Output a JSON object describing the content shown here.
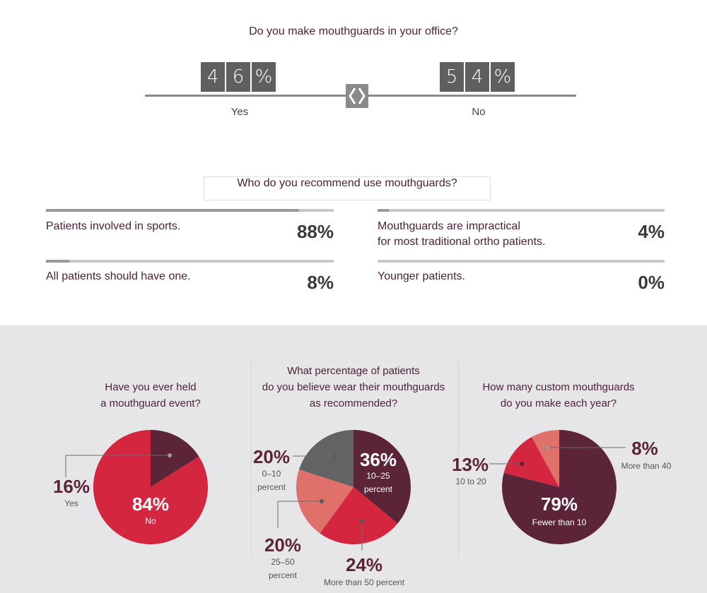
{
  "q1": {
    "question": "Do you make mouthguards in your office?",
    "yes": {
      "digits": [
        "4",
        "6",
        "%"
      ],
      "label": "Yes",
      "value": 46
    },
    "no": {
      "digits": [
        "5",
        "4",
        "%"
      ],
      "label": "No",
      "value": 54
    }
  },
  "q2": {
    "question": "Who do you recommend use mouthguards?",
    "items": [
      {
        "label": "Patients involved in sports.",
        "label2": "",
        "pct": "88%",
        "value": 88
      },
      {
        "label": "Mouthguards are impractical",
        "label2": "for most traditional ortho patients.",
        "pct": "4%",
        "value": 4
      },
      {
        "label": "All patients should have one.",
        "label2": "",
        "pct": "8%",
        "value": 8
      },
      {
        "label": "Younger patients.",
        "label2": "",
        "pct": "0%",
        "value": 0
      }
    ]
  },
  "colors": {
    "dark": "#5b2438",
    "red": "#d4263f",
    "salmon": "#e0706a",
    "grey": "#636365",
    "bar_fill": "#9a9a9c",
    "bar_track": "#c8c8ca",
    "panel": "#e6e6e8"
  },
  "chart_data": [
    {
      "type": "pie",
      "title_lines": [
        "Have you ever held",
        "a mouthguard event?"
      ],
      "slices": [
        {
          "label": "Yes",
          "value": 16,
          "pct": "16%",
          "color": "#5b2438"
        },
        {
          "label": "No",
          "value": 84,
          "pct": "84%",
          "color": "#d4263f"
        }
      ]
    },
    {
      "type": "pie",
      "title_lines": [
        "What percentage of patients",
        "do you believe wear their mouthguards",
        "as recommended?"
      ],
      "slices": [
        {
          "label": "10–25 percent",
          "value": 36,
          "pct": "36%",
          "color": "#5b2438",
          "sub": [
            "10–25",
            "percent"
          ]
        },
        {
          "label": "More than 50 percent",
          "value": 24,
          "pct": "24%",
          "color": "#d4263f",
          "sub": [
            "More than 50 percent"
          ]
        },
        {
          "label": "25–50 percent",
          "value": 20,
          "pct": "20%",
          "color": "#e0706a",
          "sub": [
            "25–50",
            "percent"
          ]
        },
        {
          "label": "0–10 percent",
          "value": 20,
          "pct": "20%",
          "color": "#636365",
          "sub": [
            "0–10",
            "percent"
          ]
        }
      ]
    },
    {
      "type": "pie",
      "title_lines": [
        "How many custom mouthguards",
        "do you make each year?"
      ],
      "slices": [
        {
          "label": "Fewer than 10",
          "value": 79,
          "pct": "79%",
          "color": "#5b2438"
        },
        {
          "label": "10 to 20",
          "value": 13,
          "pct": "13%",
          "color": "#d4263f"
        },
        {
          "label": "More than 40",
          "value": 8,
          "pct": "8%",
          "color": "#e0706a"
        }
      ]
    }
  ]
}
